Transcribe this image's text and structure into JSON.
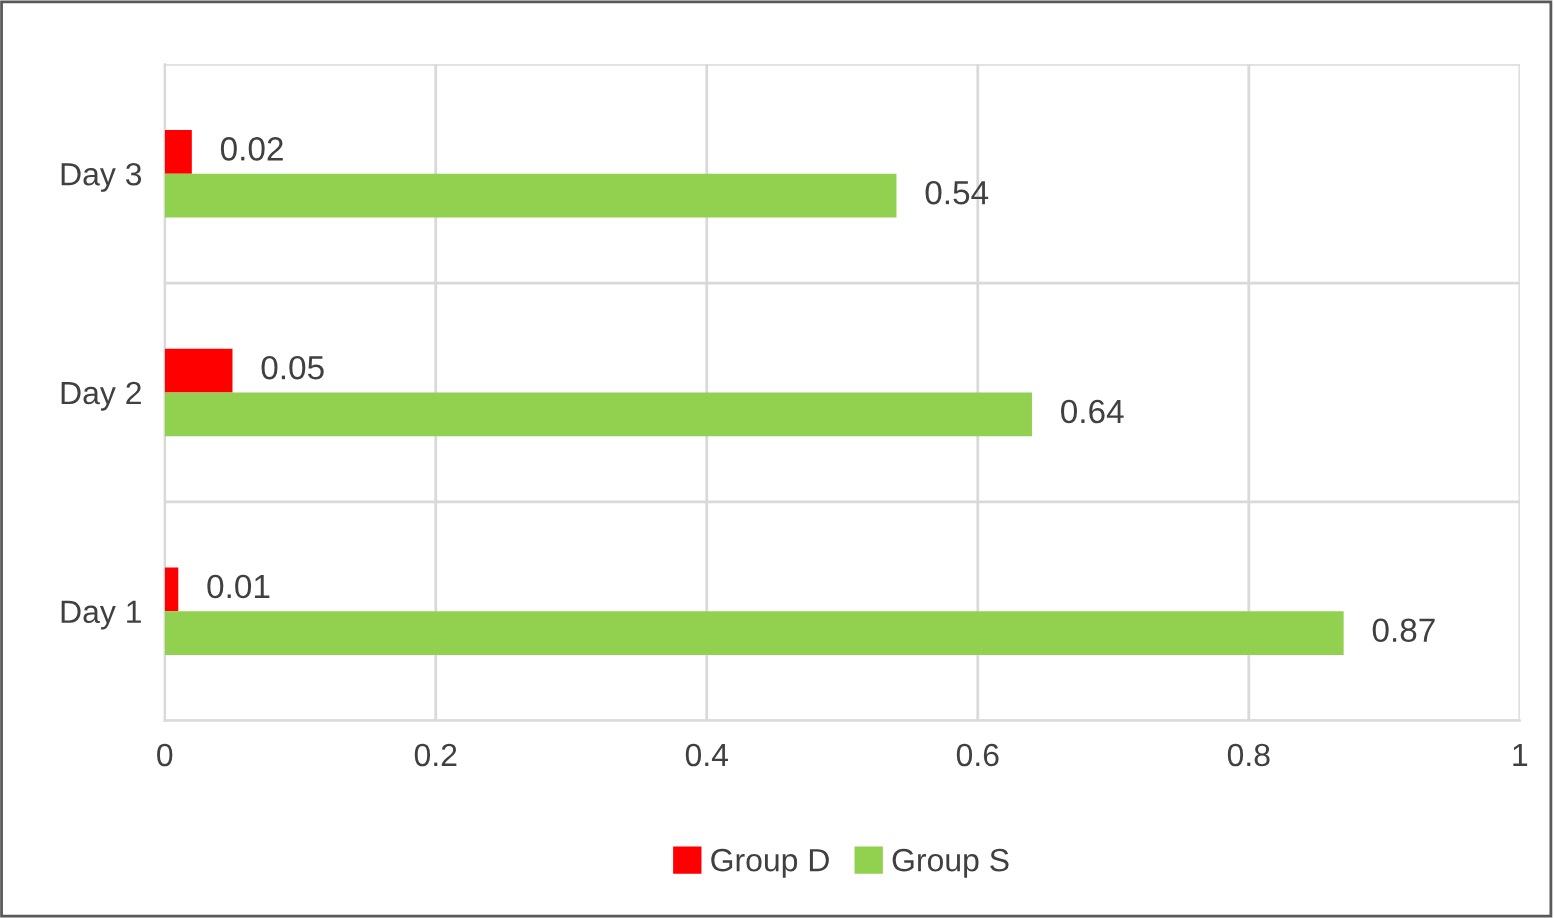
{
  "chart_data": {
    "type": "bar",
    "orientation": "horizontal",
    "categories": [
      "Day 3",
      "Day 2",
      "Day 1"
    ],
    "series": [
      {
        "name": "Group D",
        "color": "#ff0000",
        "values": [
          0.02,
          0.05,
          0.01
        ]
      },
      {
        "name": "Group S",
        "color": "#92d050",
        "values": [
          0.54,
          0.64,
          0.87
        ]
      }
    ],
    "xlim": [
      0,
      1
    ],
    "xticks": [
      0,
      0.2,
      0.4,
      0.6,
      0.8,
      1
    ],
    "grid": true,
    "legend": "bottom",
    "data_labels": true
  }
}
